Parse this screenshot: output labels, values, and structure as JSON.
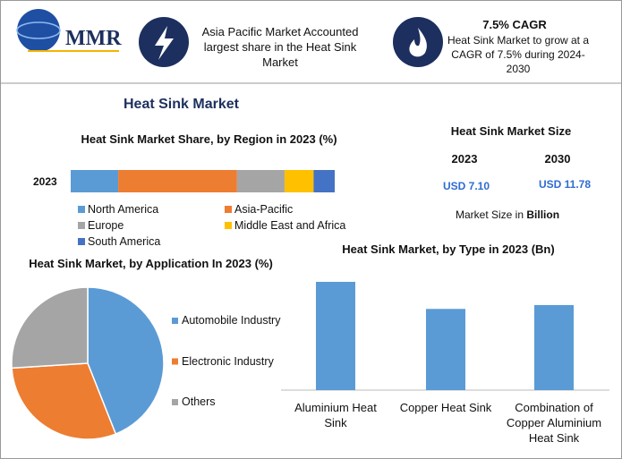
{
  "header": {
    "logo": "MMR",
    "callout_1": "Asia Pacific Market Accounted largest share in the Heat Sink Market",
    "callout_2_title": "7.5% CAGR",
    "callout_2_text": "Heat Sink Market to grow at a CAGR of 7.5% during 2024-2030"
  },
  "title": "Heat Sink Market",
  "market_size": {
    "title": "Heat Sink Market Size",
    "years": [
      "2023",
      "2030"
    ],
    "values": [
      "USD 7.10",
      "USD 11.78"
    ],
    "note": "Market Size in",
    "unit": "Billion"
  },
  "chart_data": [
    {
      "type": "stacked-bar",
      "title": "Heat Sink Market Share, by Region in 2023 (%)",
      "categories": [
        "2023"
      ],
      "series": [
        {
          "name": "North America",
          "color": "#5b9bd5",
          "values": [
            18
          ]
        },
        {
          "name": "Asia-Pacific",
          "color": "#ed7d31",
          "values": [
            45
          ]
        },
        {
          "name": "Europe",
          "color": "#a5a5a5",
          "values": [
            18
          ]
        },
        {
          "name": "Middle East and Africa",
          "color": "#ffc000",
          "values": [
            11
          ]
        },
        {
          "name": "South America",
          "color": "#4472c4",
          "values": [
            8
          ]
        }
      ]
    },
    {
      "type": "pie",
      "title": "Heat Sink Market, by Application In 2023 (%)",
      "categories": [
        "Automobile Industry",
        "Electronic Industry",
        "Others"
      ],
      "values": [
        44,
        30,
        26
      ],
      "colors": [
        "#5b9bd5",
        "#ed7d31",
        "#a5a5a5"
      ]
    },
    {
      "type": "bar",
      "title": "Heat Sink Market, by Type in 2023 (Bn)",
      "categories": [
        "Aluminium Heat Sink",
        "Copper Heat Sink",
        "Combination of Copper Aluminium Heat Sink"
      ],
      "values": [
        2.8,
        2.1,
        2.2
      ],
      "color": "#5b9bd5"
    }
  ]
}
